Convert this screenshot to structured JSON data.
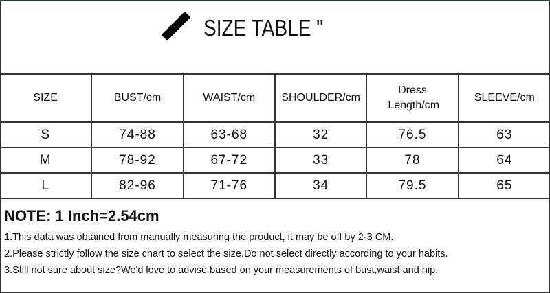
{
  "title": "SIZE TABLE \"",
  "table": {
    "headers": [
      "SIZE",
      "BUST/cm",
      "WAIST/cm",
      "SHOULDER/cm",
      "Dress Length/cm",
      "SLEEVE/cm"
    ],
    "rows": [
      [
        "S",
        "74-88",
        "63-68",
        "32",
        "76.5",
        "63"
      ],
      [
        "M",
        "78-92",
        "67-72",
        "33",
        "78",
        "64"
      ],
      [
        "L",
        "82-96",
        "71-76",
        "34",
        "79.5",
        "65"
      ]
    ]
  },
  "notes": {
    "title": "NOTE: 1 Inch=2.54cm",
    "lines": [
      "1.This data was obtained from manually measuring the product, it may be off by 2-3 CM.",
      "2.Please strictly follow the size chart to select the size.Do not select directly according to your habits.",
      "3.Still not sure about size?We'd love to advise based on your measurements of bust,waist and hip."
    ]
  }
}
